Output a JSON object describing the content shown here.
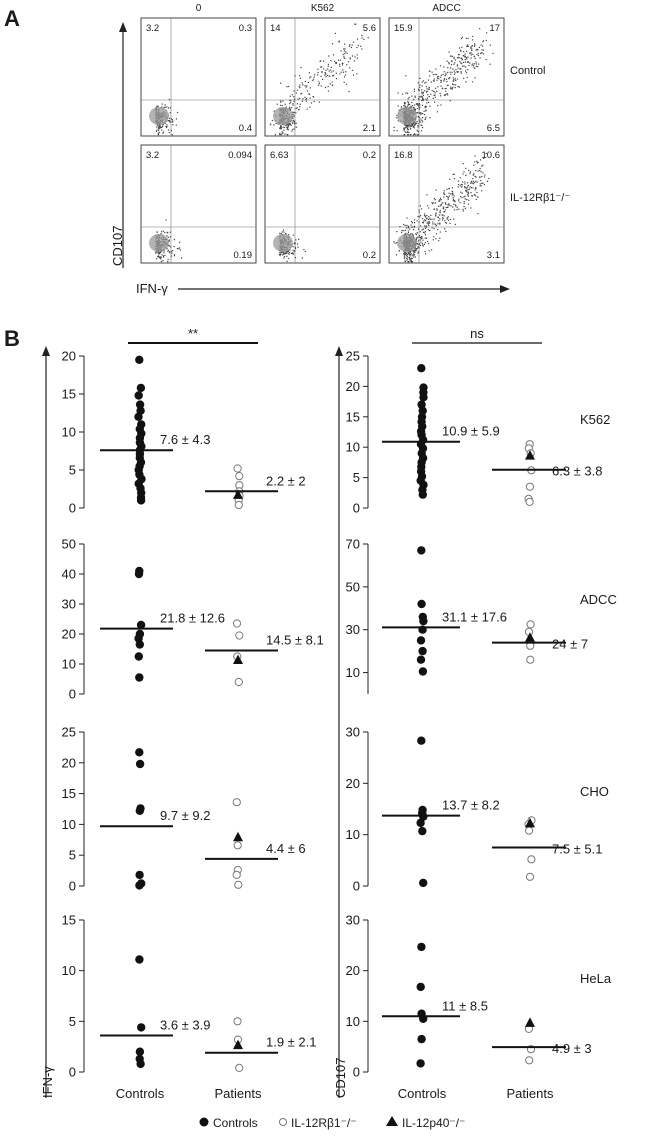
{
  "panel_a": {
    "label": "A",
    "column_titles": [
      "0",
      "K562",
      "ADCC"
    ],
    "row_labels": [
      "Control",
      "IL-12Rβ1⁻/⁻"
    ],
    "y_axis_label": "CD107",
    "x_axis_label": "IFN-γ",
    "quadrants": [
      [
        {
          "ul": "3.2",
          "ur": "0.3",
          "lr": "0.4",
          "density": "low"
        },
        {
          "ul": "14",
          "ur": "5.6",
          "lr": "2.1",
          "density": "medium"
        },
        {
          "ul": "15.9",
          "ur": "17",
          "lr": "6.5",
          "density": "high"
        }
      ],
      [
        {
          "ul": "3.2",
          "ur": "0.094",
          "lr": "0.19",
          "density": "low"
        },
        {
          "ul": "6.63",
          "ur": "0.2",
          "lr": "0.2",
          "density": "low"
        },
        {
          "ul": "16.8",
          "ur": "10.6",
          "lr": "3.1",
          "density": "high"
        }
      ]
    ]
  },
  "panel_b": {
    "label": "B",
    "left_axis_label": "IFN-γ",
    "right_axis_label": "CD107",
    "significance": {
      "left": "**",
      "right": "ns"
    },
    "x_categories": [
      "Controls",
      "Patients"
    ],
    "legend": [
      {
        "marker": "filled-circle",
        "label": "Controls"
      },
      {
        "marker": "open-circle",
        "label": "IL-12Rβ1⁻/⁻"
      },
      {
        "marker": "filled-triangle",
        "label": "IL-12p40⁻/⁻"
      }
    ],
    "row_labels": [
      "K562",
      "ADCC",
      "CHO",
      "HeLa"
    ]
  },
  "chart_data": [
    {
      "type": "scatter",
      "panel": "B",
      "metric": "IFN-γ",
      "target": "K562",
      "ylim": [
        0,
        20
      ],
      "yticks": [
        0,
        5,
        10,
        15,
        20
      ],
      "controls": [
        19.5,
        15.8,
        14.8,
        13.6,
        12.8,
        12,
        11,
        10.4,
        9.8,
        9.2,
        8.6,
        8.1,
        7.6,
        7.1,
        6.6,
        6,
        5.5,
        5,
        4.4,
        3.8,
        3.2,
        2.6,
        2,
        1.4,
        1
      ],
      "controls_summary": {
        "mean": 7.6,
        "label": "7.6 ± 4.3"
      },
      "il12rb1": [
        5.2,
        4.2,
        3,
        2.2,
        1.6,
        1,
        0.4
      ],
      "il12p40": [
        1.8
      ],
      "patients_summary": {
        "mean": 2.2,
        "label": "2.2 ± 2"
      }
    },
    {
      "type": "scatter",
      "panel": "B",
      "metric": "CD107",
      "target": "K562",
      "ylim": [
        0,
        25
      ],
      "yticks": [
        0,
        5,
        10,
        15,
        20,
        25
      ],
      "controls": [
        23,
        19.8,
        19,
        18.2,
        17,
        16,
        15,
        14.2,
        13.4,
        12.6,
        12,
        11.2,
        10.5,
        9.8,
        9,
        8.2,
        7.5,
        6.8,
        6,
        5.2,
        4.5,
        3.8,
        3,
        2.2
      ],
      "controls_summary": {
        "mean": 10.9,
        "label": "10.9 ± 5.9"
      },
      "il12rb1": [
        10.5,
        9.8,
        9,
        6.2,
        3.5,
        1.5,
        1
      ],
      "il12p40": [
        8.7
      ],
      "patients_summary": {
        "mean": 6.3,
        "label": "6.3 ± 3.8"
      }
    },
    {
      "type": "scatter",
      "panel": "B",
      "metric": "IFN-γ",
      "target": "ADCC",
      "ylim": [
        0,
        50
      ],
      "yticks": [
        0,
        10,
        20,
        30,
        40,
        50
      ],
      "controls": [
        41,
        40,
        23,
        20,
        18.5,
        16.5,
        12.5,
        5.5
      ],
      "controls_summary": {
        "mean": 21.8,
        "label": "21.8 ± 12.6"
      },
      "il12rb1": [
        23.5,
        19.5,
        12.5,
        4
      ],
      "il12p40": [
        11.5
      ],
      "patients_summary": {
        "mean": 14.5,
        "label": "14.5 ± 8.1"
      }
    },
    {
      "type": "scatter",
      "panel": "B",
      "metric": "CD107",
      "target": "ADCC",
      "ylim": [
        0,
        70
      ],
      "yticks": [
        10,
        30,
        50,
        70
      ],
      "controls": [
        67,
        42,
        36,
        34,
        30,
        25,
        20,
        16,
        10.5
      ],
      "controls_summary": {
        "mean": 31.1,
        "label": "31.1 ± 17.6"
      },
      "il12rb1": [
        32.5,
        29,
        24,
        22.5,
        16
      ],
      "il12p40": [
        26.5
      ],
      "patients_summary": {
        "mean": 24,
        "label": "24 ± 7"
      }
    },
    {
      "type": "scatter",
      "panel": "B",
      "metric": "IFN-γ",
      "target": "CHO",
      "ylim": [
        0,
        25
      ],
      "yticks": [
        0,
        5,
        10,
        15,
        20,
        25
      ],
      "controls": [
        21.7,
        19.8,
        12.6,
        12.2,
        1.8,
        0.4,
        0.1
      ],
      "controls_summary": {
        "mean": 9.7,
        "label": "9.7 ± 9.2"
      },
      "il12rb1": [
        13.6,
        6.6,
        2.6,
        1.8,
        0.2
      ],
      "il12p40": [
        8
      ],
      "patients_summary": {
        "mean": 4.4,
        "label": "4.4 ± 6"
      }
    },
    {
      "type": "scatter",
      "panel": "B",
      "metric": "CD107",
      "target": "CHO",
      "ylim": [
        0,
        30
      ],
      "yticks": [
        0,
        10,
        20,
        30
      ],
      "controls": [
        28.3,
        14.8,
        14.2,
        13.5,
        12.3,
        10.7,
        0.6
      ],
      "controls_summary": {
        "mean": 13.7,
        "label": "13.7 ± 8.2"
      },
      "il12rb1": [
        12.8,
        12,
        10.8,
        5.2,
        1.8
      ],
      "il12p40": [
        12.3
      ],
      "patients_summary": {
        "mean": 7.5,
        "label": "7.5 ± 5.1"
      }
    },
    {
      "type": "scatter",
      "panel": "B",
      "metric": "IFN-γ",
      "target": "HeLa",
      "ylim": [
        0,
        15
      ],
      "yticks": [
        0,
        5,
        10,
        15
      ],
      "controls": [
        11.1,
        4.4,
        2,
        1.3,
        0.8
      ],
      "controls_summary": {
        "mean": 3.6,
        "label": "3.6 ± 3.9"
      },
      "il12rb1": [
        5,
        3.2,
        0.4
      ],
      "il12p40": [
        2.7
      ],
      "patients_summary": {
        "mean": 1.9,
        "label": "1.9 ± 2.1"
      }
    },
    {
      "type": "scatter",
      "panel": "B",
      "metric": "CD107",
      "target": "HeLa",
      "ylim": [
        0,
        30
      ],
      "yticks": [
        0,
        10,
        20,
        30
      ],
      "controls": [
        24.7,
        16.8,
        11.5,
        10.5,
        6.5,
        1.7
      ],
      "controls_summary": {
        "mean": 11,
        "label": "11 ± 8.5"
      },
      "il12rb1": [
        8.5,
        4.5,
        2.3
      ],
      "il12p40": [
        9.8
      ],
      "patients_summary": {
        "mean": 4.9,
        "label": "4.9 ± 3"
      }
    }
  ]
}
